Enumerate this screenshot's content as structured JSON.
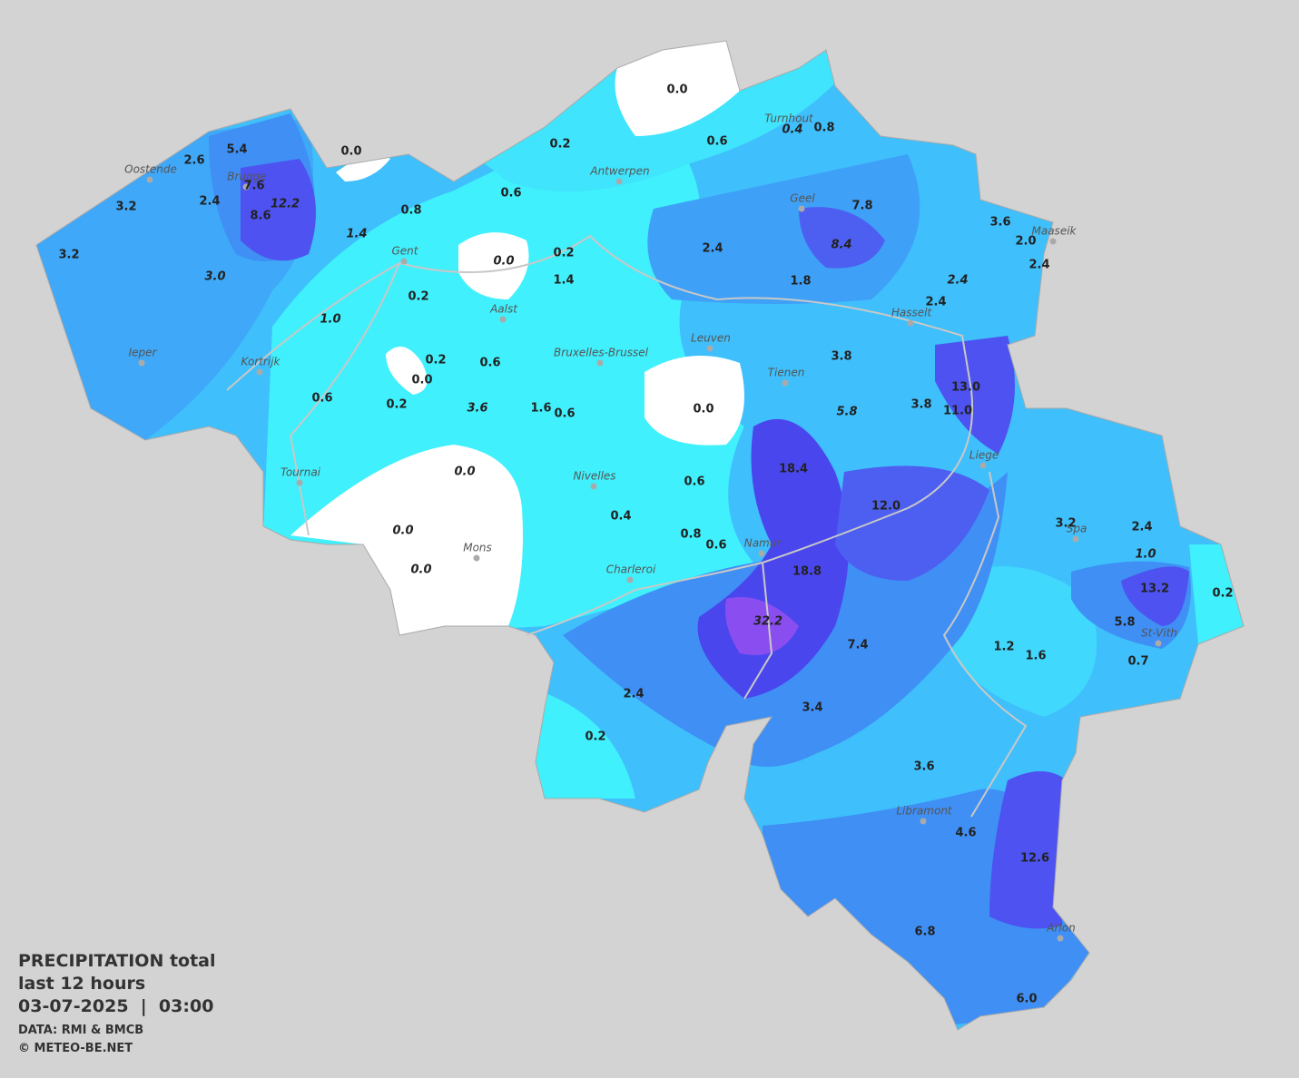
{
  "caption": {
    "title": "PRECIPITATION total",
    "period": "last 12 hours",
    "datetime": "03-07-2025  |  03:00",
    "source": "DATA: RMI & BMCB",
    "credit": "© METEO-BE.NET"
  },
  "cities": [
    "Oostende",
    "Brugge",
    "Gent",
    "Antwerpen",
    "Turnhout",
    "Geel",
    "Maaseik",
    "Hasselt",
    "Aalst",
    "Leuven",
    "Bruxelles-Brussel",
    "Tienen",
    "Ieper",
    "Kortrijk",
    "Liege",
    "Tournai",
    "Nivelles",
    "Spa",
    "Mons",
    "Namur",
    "Charleroi",
    "St-Vith",
    "Libramont",
    "Arlon"
  ],
  "stations": [
    "0.0",
    "0.0",
    "0.2",
    "0.6",
    "0.4",
    "0.8",
    "5.4",
    "2.6",
    "7.6",
    "12.2",
    "8.6",
    "2.4",
    "3.2",
    "3.2",
    "3.0",
    "0.6",
    "0.8",
    "1.4",
    "7.8",
    "8.4",
    "3.6",
    "2.0",
    "2.4",
    "2.4",
    "2.4",
    "0.0",
    "0.2",
    "1.4",
    "1.8",
    "2.4",
    "0.2",
    "1.0",
    "3.8",
    "0.2",
    "0.6",
    "0.0",
    "13.0",
    "3.8",
    "11.0",
    "5.8",
    "0.6",
    "0.2",
    "3.6",
    "1.6",
    "0.6",
    "0.0",
    "18.4",
    "0.0",
    "0.6",
    "12.0",
    "0.4",
    "0.0",
    "0.8",
    "0.6",
    "3.2",
    "2.4",
    "1.0",
    "0.0",
    "18.8",
    "13.2",
    "0.2",
    "32.2",
    "7.4",
    "5.8",
    "1.2",
    "1.6",
    "0.7",
    "2.4",
    "3.4",
    "0.2",
    "3.6",
    "4.6",
    "12.6",
    "6.8",
    "6.0"
  ]
}
